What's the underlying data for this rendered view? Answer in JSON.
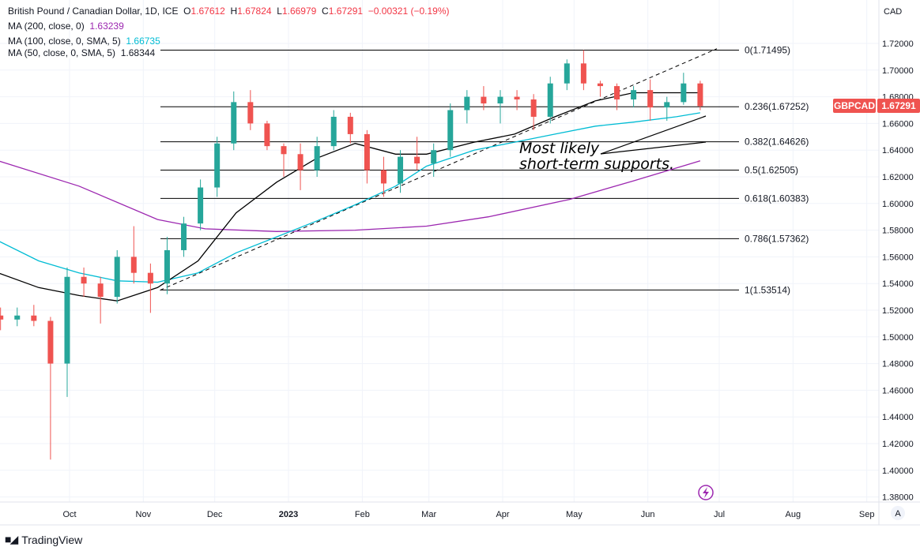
{
  "legend": {
    "symbol_title": "British Pound / Canadian Dollar, 1D, ICE",
    "open_label": "O",
    "open": "1.67612",
    "high_label": "H",
    "high": "1.67824",
    "low_label": "L",
    "low": "1.66979",
    "close_label": "C",
    "close": "1.67291",
    "change": "−0.00321 (−0.19%)",
    "ma200_label": "MA (200, close, 0)",
    "ma200_value": "1.63239",
    "ma100_label": "MA (100, close, 0, SMA, 5)",
    "ma100_value": "1.66735",
    "ma50_label": "MA (50, close, 0, SMA, 5)",
    "ma50_value": "1.68344"
  },
  "price_tag": {
    "symbol": "GBPCAD",
    "value": "1.67291"
  },
  "annotation": {
    "line1": "Most likely",
    "line2": "short-term supports."
  },
  "footer": {
    "brand": "TradingView",
    "auto_scale": "A"
  },
  "colors": {
    "up": "#26a69a",
    "down": "#ef5350",
    "ma200": "#9c27b0",
    "ma100": "#00bcd4",
    "ma50": "#000000",
    "price_tag": "#ef5350"
  },
  "chart_data": {
    "type": "candlestick",
    "currency_label": "CAD",
    "ylim": [
      1.37,
      1.73
    ],
    "y_ticks": [
      "1.38000",
      "1.40000",
      "1.42000",
      "1.44000",
      "1.46000",
      "1.48000",
      "1.50000",
      "1.52000",
      "1.54000",
      "1.56000",
      "1.58000",
      "1.60000",
      "1.62000",
      "1.64000",
      "1.66000",
      "1.68000",
      "1.70000",
      "1.72000"
    ],
    "x_ticks": [
      {
        "label": "Oct",
        "date": "2022-10-01"
      },
      {
        "label": "Nov",
        "date": "2022-11-01"
      },
      {
        "label": "Dec",
        "date": "2022-12-01"
      },
      {
        "label": "2023",
        "date": "2023-01-01"
      },
      {
        "label": "Feb",
        "date": "2023-02-01"
      },
      {
        "label": "Mar",
        "date": "2023-03-01"
      },
      {
        "label": "Apr",
        "date": "2023-04-01"
      },
      {
        "label": "May",
        "date": "2023-05-01"
      },
      {
        "label": "Jun",
        "date": "2023-06-01"
      },
      {
        "label": "Jul",
        "date": "2023-07-01"
      },
      {
        "label": "Aug",
        "date": "2023-08-01"
      },
      {
        "label": "Sep",
        "date": "2023-09-01"
      }
    ],
    "grid": true,
    "candles": [
      [
        "2022-09-02",
        1.516,
        1.522,
        1.505,
        1.513
      ],
      [
        "2022-09-09",
        1.513,
        1.522,
        1.508,
        1.516
      ],
      [
        "2022-09-16",
        1.516,
        1.524,
        1.508,
        1.512
      ],
      [
        "2022-09-23",
        1.512,
        1.515,
        1.408,
        1.48
      ],
      [
        "2022-09-30",
        1.48,
        1.552,
        1.455,
        1.545
      ],
      [
        "2022-10-07",
        1.545,
        1.552,
        1.53,
        1.54
      ],
      [
        "2022-10-14",
        1.54,
        1.545,
        1.51,
        1.53
      ],
      [
        "2022-10-21",
        1.53,
        1.565,
        1.525,
        1.56
      ],
      [
        "2022-10-28",
        1.56,
        1.583,
        1.54,
        1.548
      ],
      [
        "2022-11-04",
        1.548,
        1.555,
        1.518,
        1.54
      ],
      [
        "2022-11-11",
        1.54,
        1.575,
        1.532,
        1.565
      ],
      [
        "2022-11-18",
        1.565,
        1.59,
        1.56,
        1.585
      ],
      [
        "2022-11-25",
        1.585,
        1.618,
        1.58,
        1.612
      ],
      [
        "2022-12-02",
        1.612,
        1.65,
        1.605,
        1.645
      ],
      [
        "2022-12-09",
        1.645,
        1.684,
        1.64,
        1.676
      ],
      [
        "2022-12-16",
        1.676,
        1.685,
        1.655,
        1.66
      ],
      [
        "2022-12-23",
        1.66,
        1.662,
        1.64,
        1.643
      ],
      [
        "2022-12-30",
        1.643,
        1.645,
        1.62,
        1.637
      ],
      [
        "2023-01-06",
        1.637,
        1.645,
        1.61,
        1.625
      ],
      [
        "2023-01-13",
        1.625,
        1.65,
        1.62,
        1.643
      ],
      [
        "2023-01-20",
        1.643,
        1.67,
        1.64,
        1.665
      ],
      [
        "2023-01-27",
        1.665,
        1.668,
        1.645,
        1.652
      ],
      [
        "2023-02-03",
        1.652,
        1.655,
        1.615,
        1.625
      ],
      [
        "2023-02-10",
        1.625,
        1.635,
        1.605,
        1.615
      ],
      [
        "2023-02-17",
        1.615,
        1.64,
        1.608,
        1.635
      ],
      [
        "2023-02-24",
        1.635,
        1.65,
        1.625,
        1.63
      ],
      [
        "2023-03-03",
        1.63,
        1.645,
        1.62,
        1.64
      ],
      [
        "2023-03-10",
        1.64,
        1.675,
        1.635,
        1.67
      ],
      [
        "2023-03-17",
        1.67,
        1.685,
        1.66,
        1.68
      ],
      [
        "2023-03-24",
        1.68,
        1.688,
        1.67,
        1.675
      ],
      [
        "2023-03-31",
        1.675,
        1.685,
        1.66,
        1.68
      ],
      [
        "2023-04-07",
        1.68,
        1.685,
        1.67,
        1.678
      ],
      [
        "2023-04-14",
        1.678,
        1.682,
        1.655,
        1.665
      ],
      [
        "2023-04-21",
        1.665,
        1.695,
        1.66,
        1.69
      ],
      [
        "2023-04-28",
        1.69,
        1.708,
        1.685,
        1.705
      ],
      [
        "2023-05-05",
        1.705,
        1.715,
        1.685,
        1.69
      ],
      [
        "2023-05-12",
        1.69,
        1.692,
        1.68,
        1.688
      ],
      [
        "2023-05-19",
        1.688,
        1.69,
        1.67,
        1.678
      ],
      [
        "2023-05-26",
        1.678,
        1.688,
        1.672,
        1.685
      ],
      [
        "2023-06-02",
        1.685,
        1.693,
        1.662,
        1.672
      ],
      [
        "2023-06-09",
        1.672,
        1.68,
        1.662,
        1.676
      ],
      [
        "2023-06-16",
        1.676,
        1.698,
        1.674,
        1.69
      ],
      [
        "2023-06-23",
        1.69,
        1.692,
        1.67,
        1.673
      ]
    ],
    "candle_fields": [
      "date",
      "open",
      "high",
      "low",
      "close"
    ],
    "series": [
      {
        "name": "MA (200, close, 0)",
        "color": "#9c27b0",
        "points": [
          [
            "2022-09-01",
            1.632
          ],
          [
            "2022-10-05",
            1.613
          ],
          [
            "2022-11-07",
            1.588
          ],
          [
            "2022-11-27",
            1.581
          ],
          [
            "2022-12-27",
            1.579
          ],
          [
            "2023-01-29",
            1.58
          ],
          [
            "2023-02-28",
            1.583
          ],
          [
            "2023-03-26",
            1.59
          ],
          [
            "2023-04-29",
            1.603
          ],
          [
            "2023-05-26",
            1.617
          ],
          [
            "2023-06-23",
            1.632
          ]
        ]
      },
      {
        "name": "MA (100, close, 0, SMA, 5)",
        "color": "#00bcd4",
        "points": [
          [
            "2022-09-01",
            1.572
          ],
          [
            "2022-09-18",
            1.557
          ],
          [
            "2022-10-05",
            1.548
          ],
          [
            "2022-10-21",
            1.542
          ],
          [
            "2022-11-07",
            1.541
          ],
          [
            "2022-11-24",
            1.548
          ],
          [
            "2022-12-10",
            1.563
          ],
          [
            "2022-12-27",
            1.575
          ],
          [
            "2023-01-13",
            1.587
          ],
          [
            "2023-01-29",
            1.599
          ],
          [
            "2023-02-15",
            1.613
          ],
          [
            "2023-02-28",
            1.628
          ],
          [
            "2023-03-20",
            1.64
          ],
          [
            "2023-04-06",
            1.646
          ],
          [
            "2023-04-23",
            1.652
          ],
          [
            "2023-05-10",
            1.658
          ],
          [
            "2023-05-26",
            1.661
          ],
          [
            "2023-06-13",
            1.665
          ],
          [
            "2023-06-23",
            1.668
          ]
        ]
      },
      {
        "name": "MA (50, close, 0, SMA, 5)",
        "color": "#000000",
        "points": [
          [
            "2022-09-01",
            1.548
          ],
          [
            "2022-09-18",
            1.537
          ],
          [
            "2022-10-05",
            1.531
          ],
          [
            "2022-10-21",
            1.527
          ],
          [
            "2022-11-07",
            1.537
          ],
          [
            "2022-11-24",
            1.557
          ],
          [
            "2022-12-10",
            1.593
          ],
          [
            "2022-12-27",
            1.616
          ],
          [
            "2023-01-13",
            1.634
          ],
          [
            "2023-01-29",
            1.645
          ],
          [
            "2023-02-15",
            1.637
          ],
          [
            "2023-02-28",
            1.637
          ],
          [
            "2023-03-20",
            1.646
          ],
          [
            "2023-04-06",
            1.652
          ],
          [
            "2023-04-23",
            1.665
          ],
          [
            "2023-05-10",
            1.677
          ],
          [
            "2023-05-26",
            1.683
          ],
          [
            "2023-06-13",
            1.683
          ],
          [
            "2023-06-23",
            1.683
          ]
        ]
      }
    ],
    "fib_levels": [
      {
        "label": "0(1.71495)",
        "value": 1.71495
      },
      {
        "label": "0.236(1.67252)",
        "value": 1.67252
      },
      {
        "label": "0.382(1.64626)",
        "value": 1.64626
      },
      {
        "label": "0.5(1.62505)",
        "value": 1.62505
      },
      {
        "label": "0.618(1.60383)",
        "value": 1.60383
      },
      {
        "label": "0.786(1.57362)",
        "value": 1.57362
      },
      {
        "label": "1(1.53514)",
        "value": 1.53514
      }
    ],
    "trendline": {
      "start": [
        "2022-11-08",
        1.535
      ],
      "end": [
        "2023-06-30",
        1.716
      ],
      "style": "dashed"
    }
  }
}
